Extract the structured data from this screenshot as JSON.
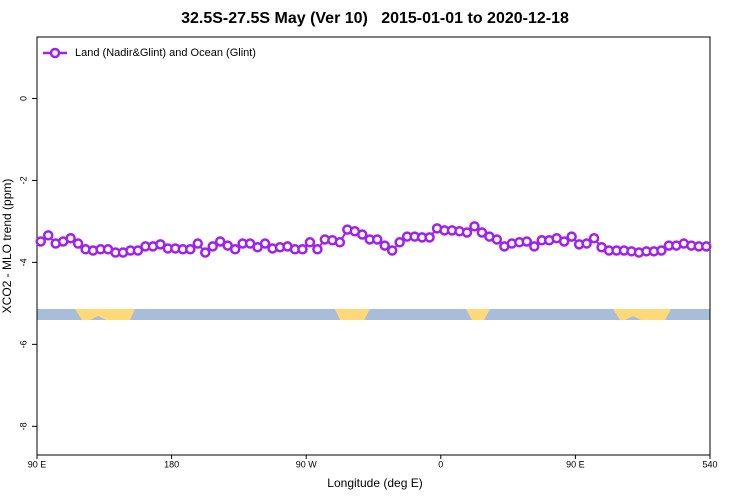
{
  "chart_data": {
    "type": "line",
    "title": "32.5S-27.5S May (Ver 10)   2015-01-01 to 2020-12-18",
    "x_label": "Longitude (deg E)",
    "y_label": "XCO2 - MLO trend (ppm)",
    "x": [
      92.5,
      97.5,
      102.5,
      107.5,
      112.5,
      117.5,
      122.5,
      127.5,
      132.5,
      137.5,
      142.5,
      147.5,
      152.5,
      157.5,
      162.5,
      167.5,
      172.5,
      177.5,
      182.5,
      187.5,
      192.5,
      197.5,
      202.5,
      207.5,
      212.5,
      217.5,
      222.5,
      227.5,
      232.5,
      237.5,
      242.5,
      247.5,
      252.5,
      257.5,
      262.5,
      267.5,
      272.5,
      277.5,
      282.5,
      287.5,
      292.5,
      297.5,
      302.5,
      307.5,
      312.5,
      317.5,
      322.5,
      327.5,
      332.5,
      337.5,
      342.5,
      347.5,
      352.5,
      357.5,
      362.5,
      367.5,
      372.5,
      377.5,
      382.5,
      387.5,
      392.5,
      397.5,
      402.5,
      407.5,
      412.5,
      417.5,
      422.5,
      427.5,
      432.5,
      437.5,
      442.5,
      447.5,
      452.5,
      457.5,
      462.5,
      467.5,
      472.5,
      477.5,
      482.5,
      487.5,
      492.5,
      497.5,
      502.5,
      507.5,
      512.5,
      517.5,
      522.5,
      527.5,
      532.5,
      537.5
    ],
    "series": [
      {
        "name": "Land (Nadir&Glint) and Ocean (Glint)",
        "color": "#a020f0",
        "values": [
          -3.49,
          -3.34,
          -3.54,
          -3.49,
          -3.41,
          -3.54,
          -3.68,
          -3.71,
          -3.68,
          -3.68,
          -3.76,
          -3.76,
          -3.71,
          -3.71,
          -3.61,
          -3.61,
          -3.56,
          -3.66,
          -3.66,
          -3.68,
          -3.68,
          -3.54,
          -3.76,
          -3.61,
          -3.49,
          -3.59,
          -3.68,
          -3.54,
          -3.54,
          -3.63,
          -3.54,
          -3.66,
          -3.63,
          -3.61,
          -3.68,
          -3.68,
          -3.51,
          -3.68,
          -3.44,
          -3.46,
          -3.51,
          -3.2,
          -3.24,
          -3.32,
          -3.44,
          -3.44,
          -3.59,
          -3.71,
          -3.51,
          -3.37,
          -3.37,
          -3.39,
          -3.39,
          -3.17,
          -3.22,
          -3.22,
          -3.24,
          -3.27,
          -3.12,
          -3.27,
          -3.37,
          -3.44,
          -3.61,
          -3.54,
          -3.51,
          -3.49,
          -3.61,
          -3.46,
          -3.46,
          -3.41,
          -3.49,
          -3.37,
          -3.56,
          -3.54,
          -3.41,
          -3.63,
          -3.71,
          -3.71,
          -3.71,
          -3.73,
          -3.76,
          -3.73,
          -3.73,
          -3.71,
          -3.59,
          -3.59,
          -3.54,
          -3.59,
          -3.61,
          -3.61
        ]
      }
    ],
    "xlim": [
      90,
      540
    ],
    "xticks": [
      {
        "value": 90,
        "label": "90 E"
      },
      180,
      {
        "value": 270,
        "label": "90 W"
      },
      {
        "value": 360,
        "label": "0"
      },
      {
        "value": 450,
        "label": "90 E"
      },
      540
    ],
    "ylim": [
      -8.7,
      1.5
    ],
    "yticks": [
      0,
      -2,
      -4,
      -6,
      -8
    ],
    "legend": "upper left"
  }
}
